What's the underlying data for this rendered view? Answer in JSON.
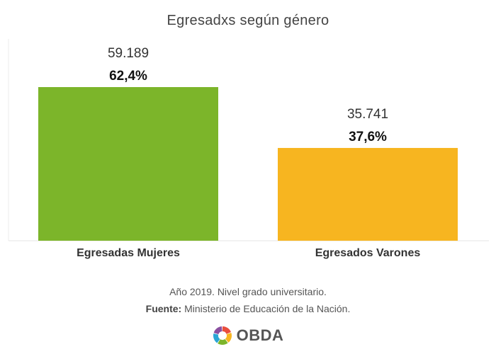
{
  "chart_data": {
    "type": "bar",
    "title": "Egresadxs según género",
    "categories": [
      "Egresadas Mujeres",
      "Egresados Varones"
    ],
    "values": [
      59189,
      35741
    ],
    "value_labels": [
      "59.189",
      "35.741"
    ],
    "percent_labels": [
      "62,4%",
      "37,6%"
    ],
    "colors": [
      "#7cb52a",
      "#f7b520"
    ],
    "ylim": [
      0,
      59189
    ],
    "xlabel": "",
    "ylabel": "",
    "grid": false,
    "legend": "none"
  },
  "note": {
    "line1": "Año 2019. Nivel grado universitario.",
    "source_label": "Fuente:",
    "source_text": "Ministerio de Educación de la Nación."
  },
  "logo": {
    "text": "OBDA",
    "colors": [
      "#e94e3d",
      "#f7b520",
      "#7cb52a",
      "#2aa6d6",
      "#8a4fa0"
    ]
  }
}
